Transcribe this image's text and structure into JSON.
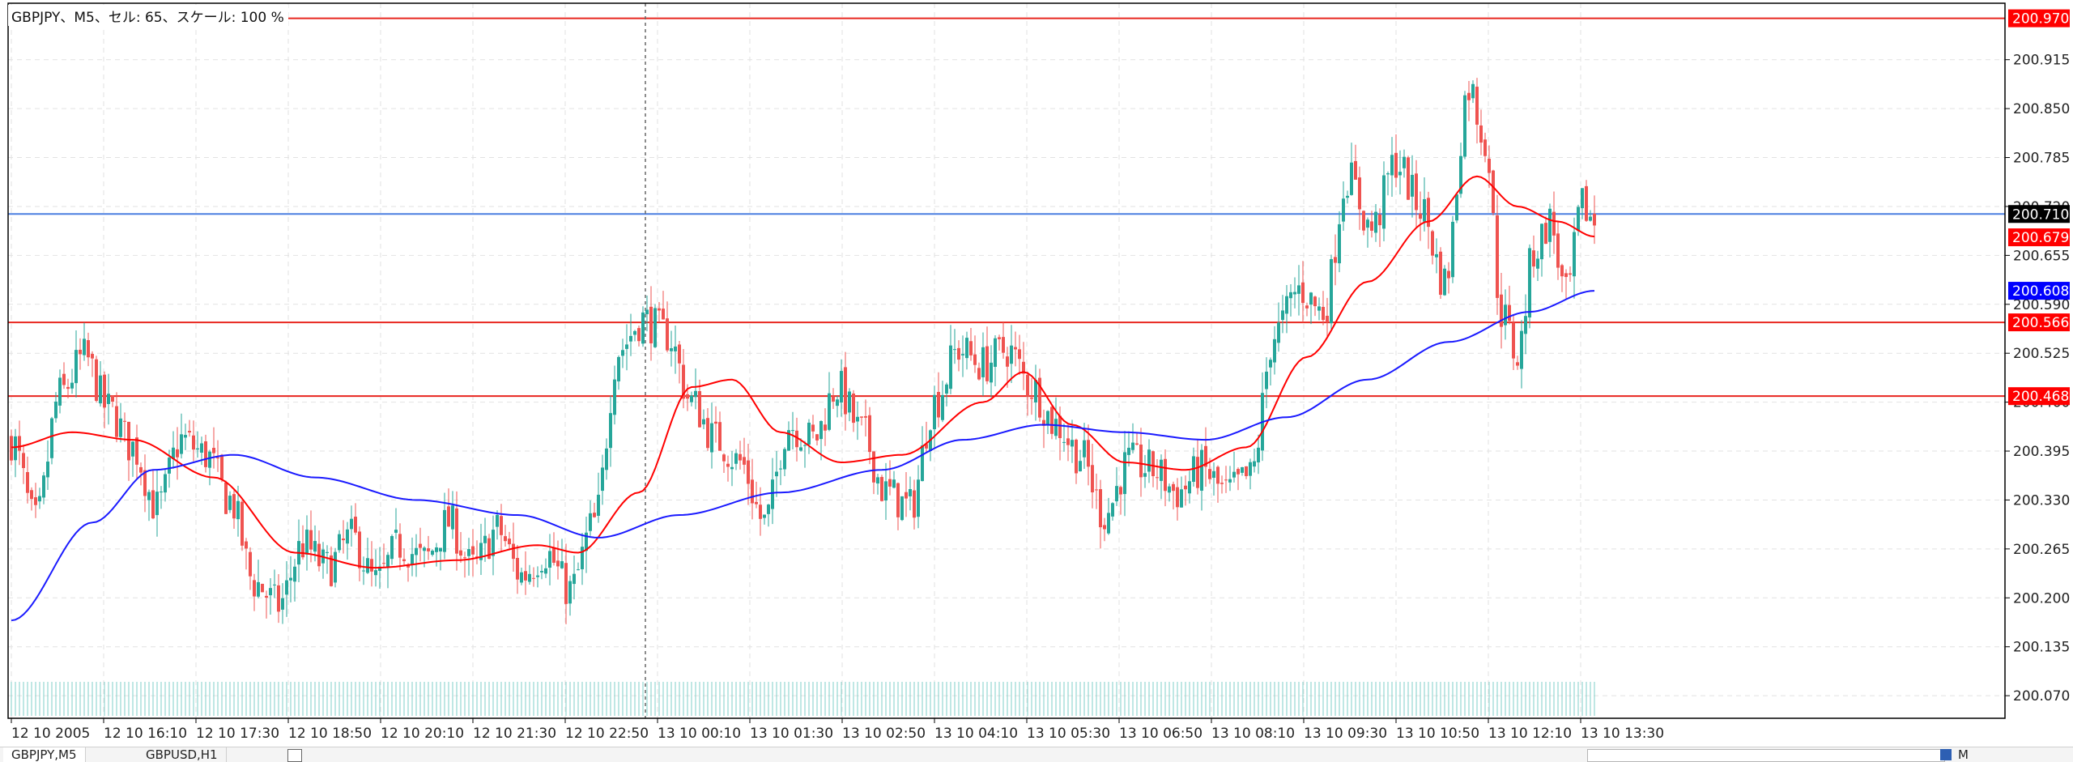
{
  "chart_data": {
    "type": "candlestick",
    "title": "GBPJPY、M5、セル: 65、スケール: 100 %",
    "symbol": "GBPJPY",
    "timeframe": "M5",
    "ylim": [
      200.04,
      200.99
    ],
    "grid": true,
    "price_ticks": [
      "200.915",
      "200.850",
      "200.785",
      "200.720",
      "200.655",
      "200.590",
      "200.525",
      "200.460",
      "200.395",
      "200.330",
      "200.265",
      "200.200",
      "200.135",
      "200.070"
    ],
    "time_ticks": [
      "12 10 2005",
      "12 10 16:10",
      "12 10 17:30",
      "12 10 18:50",
      "12 10 20:10",
      "12 10 21:30",
      "12 10 22:50",
      "13 10 00:10",
      "13 10 01:30",
      "13 10 02:50",
      "13 10 04:10",
      "13 10 05:30",
      "13 10 06:50",
      "13 10 08:10",
      "13 10 09:30",
      "13 10 10:50",
      "13 10 12:10",
      "13 10 13:30"
    ],
    "horizontal_levels": [
      {
        "value": 200.97,
        "label": "200.970",
        "color": "#e8261f"
      },
      {
        "value": 200.566,
        "label": "200.566",
        "color": "#e8261f"
      },
      {
        "value": 200.468,
        "label": "200.468",
        "color": "#e8261f"
      },
      {
        "value": 200.71,
        "label": "200.710",
        "color": "#4a7fe0"
      }
    ],
    "price_tags": [
      {
        "value": 200.97,
        "label": "200.970",
        "bg": "#ff0000"
      },
      {
        "value": 200.71,
        "label": "200.710",
        "bg": "#000000"
      },
      {
        "value": 200.679,
        "label": "200.679",
        "bg": "#ff0000"
      },
      {
        "value": 200.608,
        "label": "200.608",
        "bg": "#0000ff"
      },
      {
        "value": 200.566,
        "label": "200.566",
        "bg": "#ff0000"
      },
      {
        "value": 200.468,
        "label": "200.468",
        "bg": "#ff0000"
      }
    ],
    "colors": {
      "up": "#26a69a",
      "down": "#ef5350",
      "fast_ma": "#ff0000",
      "slow_ma": "#1a1aff",
      "grid": "#e2e2e2"
    },
    "anchors_close": [
      [
        0,
        200.41
      ],
      [
        6,
        200.3
      ],
      [
        12,
        200.47
      ],
      [
        18,
        200.52
      ],
      [
        24,
        200.45
      ],
      [
        30,
        200.4
      ],
      [
        36,
        200.32
      ],
      [
        42,
        200.41
      ],
      [
        48,
        200.39
      ],
      [
        54,
        200.33
      ],
      [
        60,
        200.22
      ],
      [
        66,
        200.19
      ],
      [
        72,
        200.27
      ],
      [
        78,
        200.24
      ],
      [
        84,
        200.28
      ],
      [
        90,
        200.22
      ],
      [
        96,
        200.27
      ],
      [
        102,
        200.25
      ],
      [
        108,
        200.3
      ],
      [
        114,
        200.24
      ],
      [
        120,
        200.29
      ],
      [
        126,
        200.23
      ],
      [
        132,
        200.26
      ],
      [
        138,
        200.21
      ],
      [
        144,
        200.3
      ],
      [
        150,
        200.53
      ],
      [
        156,
        200.57
      ],
      [
        162,
        200.55
      ],
      [
        168,
        200.46
      ],
      [
        174,
        200.41
      ],
      [
        180,
        200.38
      ],
      [
        186,
        200.3
      ],
      [
        192,
        200.43
      ],
      [
        198,
        200.41
      ],
      [
        204,
        200.48
      ],
      [
        210,
        200.42
      ],
      [
        216,
        200.34
      ],
      [
        222,
        200.32
      ],
      [
        228,
        200.46
      ],
      [
        234,
        200.53
      ],
      [
        240,
        200.51
      ],
      [
        246,
        200.53
      ],
      [
        252,
        200.48
      ],
      [
        258,
        200.43
      ],
      [
        264,
        200.39
      ],
      [
        270,
        200.31
      ],
      [
        276,
        200.38
      ],
      [
        282,
        200.37
      ],
      [
        288,
        200.34
      ],
      [
        294,
        200.37
      ],
      [
        300,
        200.34
      ],
      [
        306,
        200.36
      ],
      [
        312,
        200.55
      ],
      [
        318,
        200.61
      ],
      [
        324,
        200.58
      ],
      [
        330,
        200.76
      ],
      [
        336,
        200.69
      ],
      [
        342,
        200.78
      ],
      [
        348,
        200.72
      ],
      [
        354,
        200.62
      ],
      [
        360,
        200.88
      ],
      [
        364,
        200.81
      ],
      [
        368,
        200.58
      ],
      [
        372,
        200.52
      ],
      [
        376,
        200.66
      ],
      [
        380,
        200.7
      ],
      [
        384,
        200.6
      ],
      [
        388,
        200.72
      ],
      [
        391,
        200.7
      ]
    ],
    "fast_ma_anchors": [
      [
        0,
        200.4
      ],
      [
        15,
        200.42
      ],
      [
        30,
        200.41
      ],
      [
        50,
        200.36
      ],
      [
        70,
        200.26
      ],
      [
        90,
        200.24
      ],
      [
        110,
        200.25
      ],
      [
        130,
        200.27
      ],
      [
        140,
        200.26
      ],
      [
        155,
        200.34
      ],
      [
        168,
        200.48
      ],
      [
        178,
        200.49
      ],
      [
        190,
        200.42
      ],
      [
        205,
        200.38
      ],
      [
        220,
        200.39
      ],
      [
        240,
        200.46
      ],
      [
        250,
        200.5
      ],
      [
        262,
        200.43
      ],
      [
        275,
        200.38
      ],
      [
        290,
        200.37
      ],
      [
        305,
        200.4
      ],
      [
        320,
        200.52
      ],
      [
        335,
        200.62
      ],
      [
        350,
        200.7
      ],
      [
        362,
        200.76
      ],
      [
        372,
        200.72
      ],
      [
        382,
        200.7
      ],
      [
        391,
        200.68
      ]
    ],
    "slow_ma_anchors": [
      [
        0,
        200.17
      ],
      [
        20,
        200.3
      ],
      [
        35,
        200.37
      ],
      [
        55,
        200.39
      ],
      [
        75,
        200.36
      ],
      [
        100,
        200.33
      ],
      [
        125,
        200.31
      ],
      [
        145,
        200.28
      ],
      [
        165,
        200.31
      ],
      [
        190,
        200.34
      ],
      [
        215,
        200.37
      ],
      [
        235,
        200.41
      ],
      [
        255,
        200.43
      ],
      [
        275,
        200.42
      ],
      [
        295,
        200.41
      ],
      [
        315,
        200.44
      ],
      [
        335,
        200.49
      ],
      [
        355,
        200.54
      ],
      [
        375,
        200.58
      ],
      [
        391,
        200.608
      ]
    ]
  },
  "tabs": [
    {
      "label": "GBPJPY,M5"
    },
    {
      "label": "GBPUSD,H1"
    }
  ],
  "right_status": "M"
}
